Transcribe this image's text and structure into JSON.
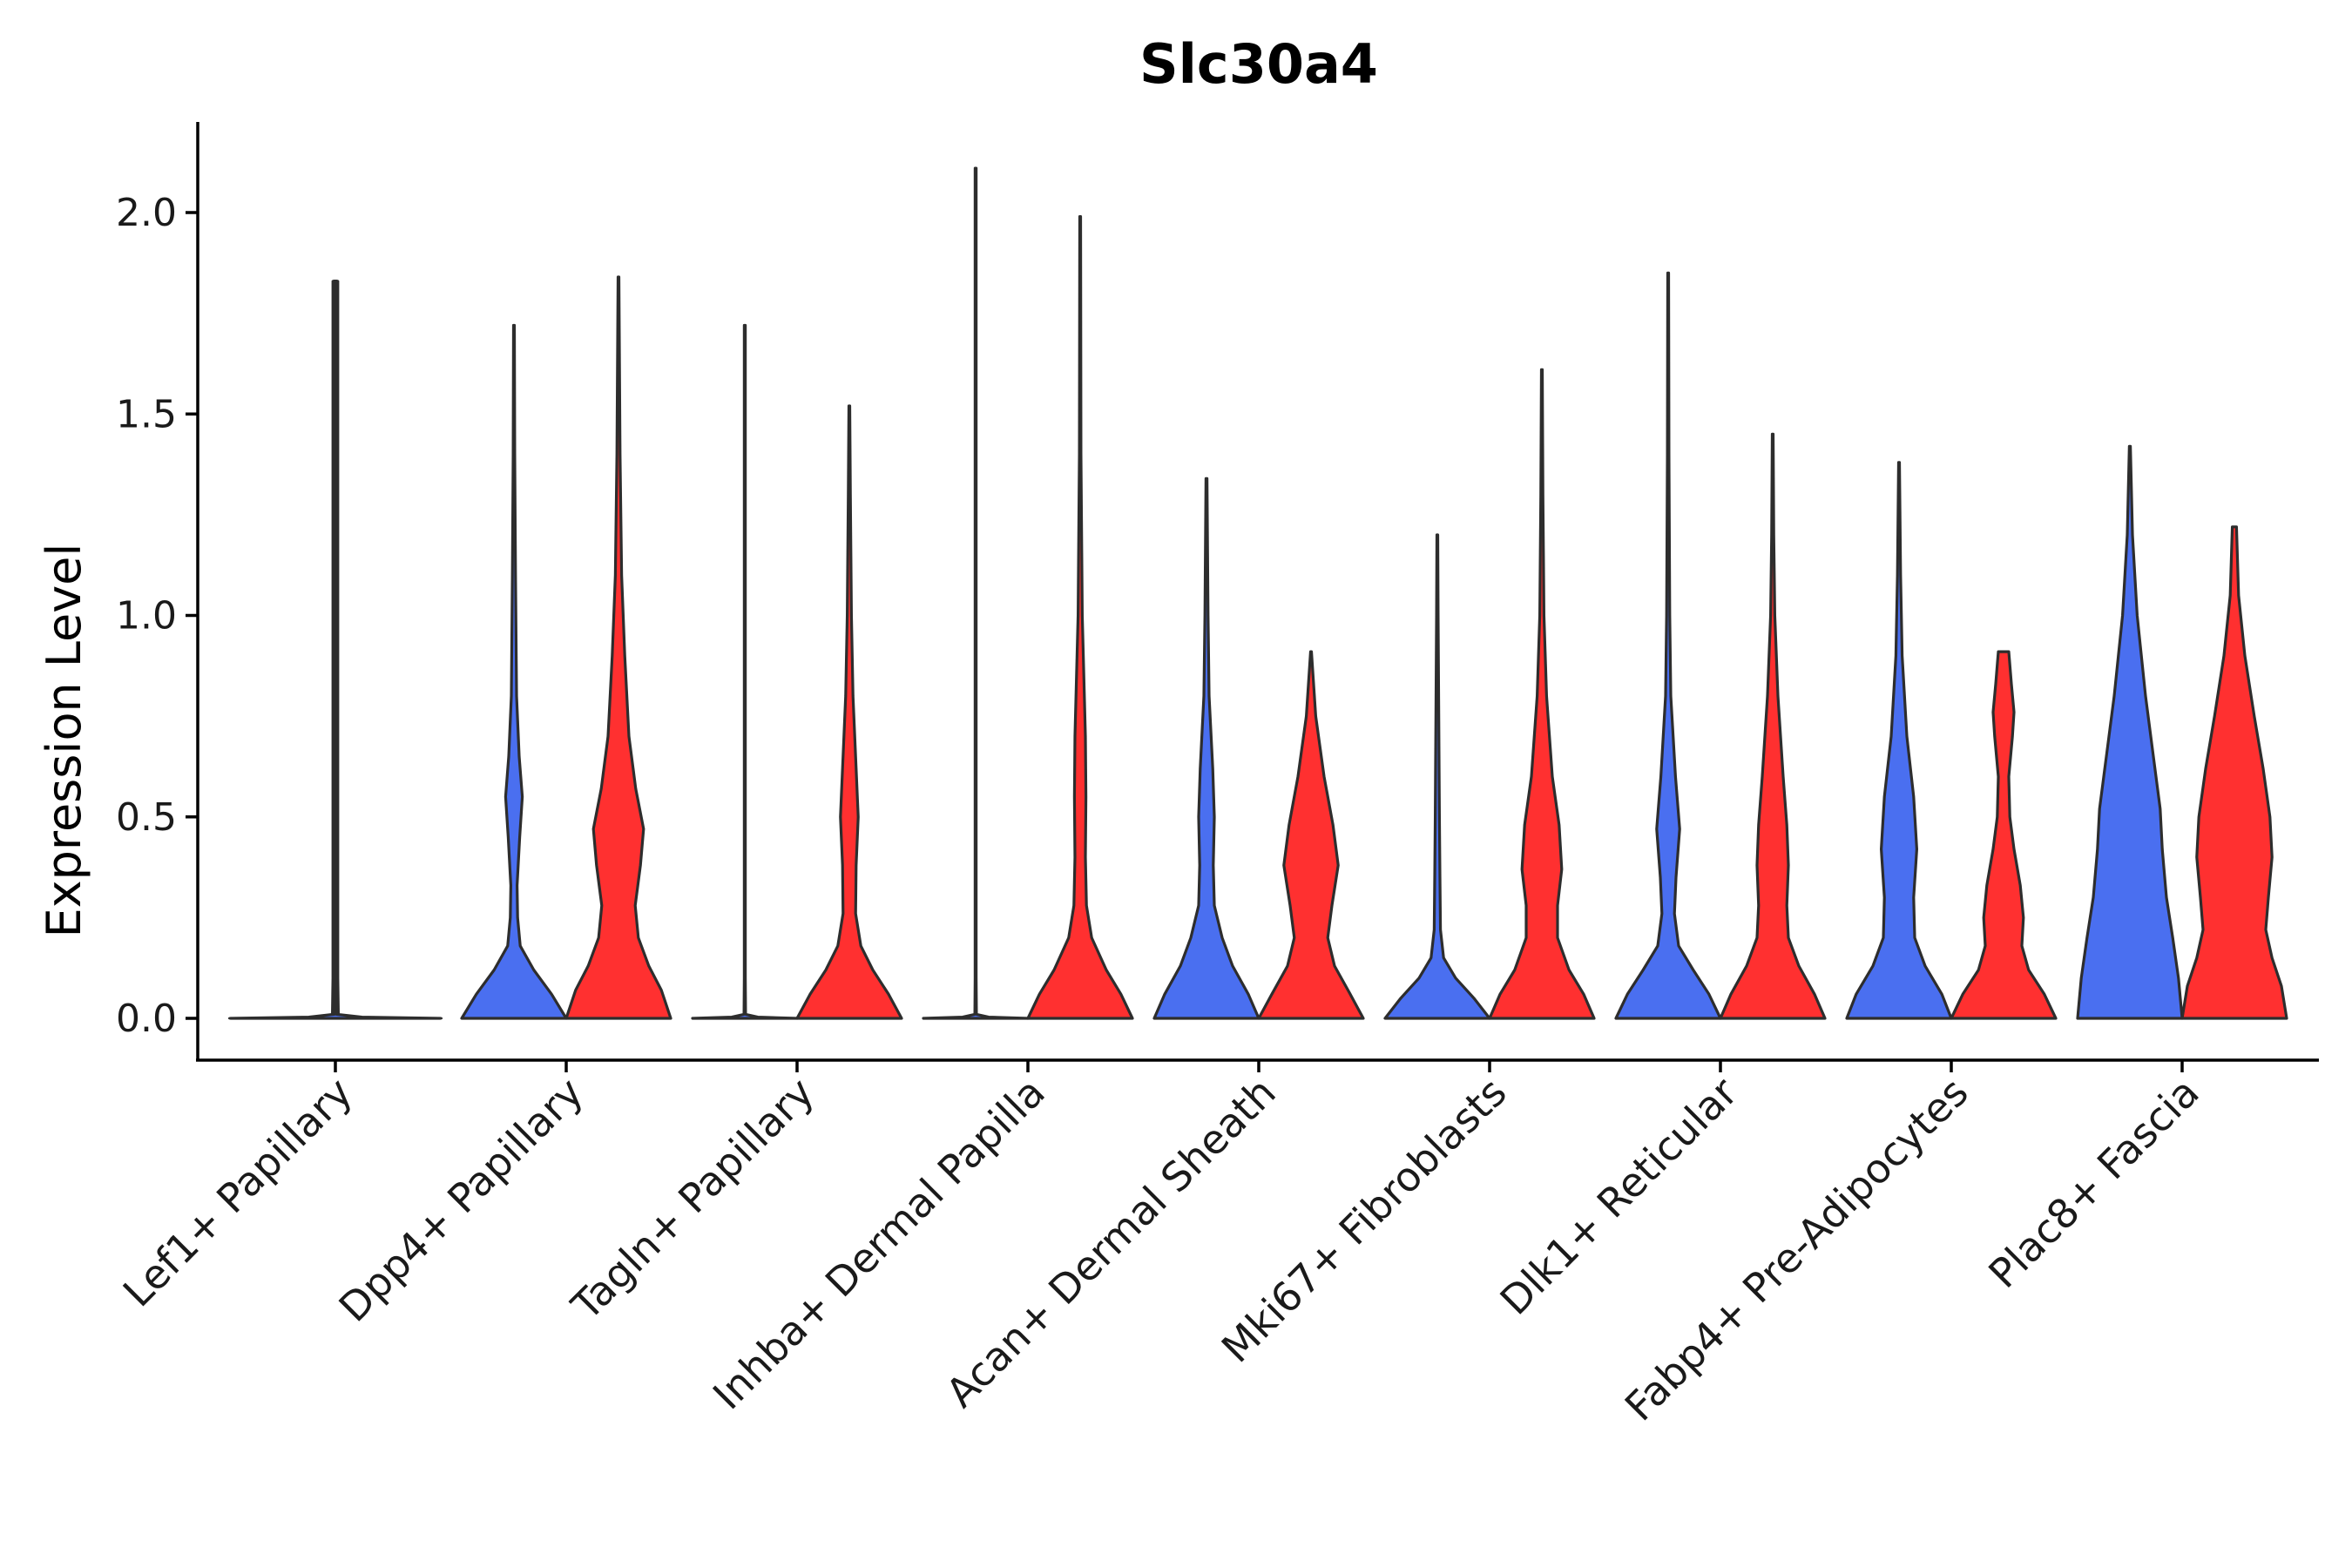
{
  "chart_data": {
    "type": "violin",
    "title": "Slc30a4",
    "xlabel": "",
    "ylabel": "Expression Level",
    "ylim": [
      -0.11,
      2.22
    ],
    "yticks": [
      "0.0",
      "0.5",
      "1.0",
      "1.5",
      "2.0"
    ],
    "categories": [
      "Lef1+ Papillary",
      "Dpp4+ Papillary",
      "Tagln+ Papillary",
      "Inhba+ Dermal Papilla",
      "Acan+ Dermal Sheath",
      "Mki67+ Fibroblasts",
      "Dlk1+ Reticular",
      "Fabp4+ Pre-Adipocytes",
      "Plac8+ Fascia"
    ],
    "colors": {
      "blue": "#4a6ff0",
      "red": "#ff3030",
      "outline": "#2d2d2d"
    },
    "series": [
      {
        "name": "blue",
        "color": "#4a6ff0",
        "violins": [
          {
            "max": 1.83,
            "density": [
              [
                0.0,
                1.0
              ],
              [
                0.003,
                0.25
              ],
              [
                0.01,
                0.015
              ],
              [
                0.1,
                0.01
              ],
              [
                1.83,
                0.01
              ]
            ]
          },
          {
            "max": 1.72,
            "density": [
              [
                0.0,
                1.0
              ],
              [
                0.06,
                0.72
              ],
              [
                0.12,
                0.38
              ],
              [
                0.18,
                0.12
              ],
              [
                0.25,
                0.07
              ],
              [
                0.33,
                0.06
              ],
              [
                0.45,
                0.11
              ],
              [
                0.55,
                0.16
              ],
              [
                0.65,
                0.1
              ],
              [
                0.8,
                0.05
              ],
              [
                1.1,
                0.03
              ],
              [
                1.4,
                0.015
              ],
              [
                1.72,
                0.008
              ]
            ]
          },
          {
            "max": 1.72,
            "density": [
              [
                0.0,
                1.0
              ],
              [
                0.003,
                0.25
              ],
              [
                0.01,
                0.015
              ],
              [
                0.1,
                0.01
              ],
              [
                1.72,
                0.01
              ]
            ]
          },
          {
            "max": 2.11,
            "density": [
              [
                0.0,
                1.0
              ],
              [
                0.003,
                0.25
              ],
              [
                0.01,
                0.015
              ],
              [
                0.1,
                0.01
              ],
              [
                2.11,
                0.01
              ]
            ]
          },
          {
            "max": 1.34,
            "density": [
              [
                0.0,
                1.0
              ],
              [
                0.06,
                0.8
              ],
              [
                0.13,
                0.5
              ],
              [
                0.2,
                0.3
              ],
              [
                0.28,
                0.15
              ],
              [
                0.38,
                0.13
              ],
              [
                0.5,
                0.15
              ],
              [
                0.62,
                0.12
              ],
              [
                0.8,
                0.05
              ],
              [
                1.0,
                0.03
              ],
              [
                1.34,
                0.01
              ]
            ]
          },
          {
            "max": 1.2,
            "density": [
              [
                0.0,
                1.0
              ],
              [
                0.05,
                0.7
              ],
              [
                0.1,
                0.35
              ],
              [
                0.15,
                0.12
              ],
              [
                0.22,
                0.06
              ],
              [
                0.35,
                0.05
              ],
              [
                0.5,
                0.04
              ],
              [
                0.7,
                0.03
              ],
              [
                1.0,
                0.015
              ],
              [
                1.2,
                0.008
              ]
            ]
          },
          {
            "max": 1.85,
            "density": [
              [
                0.0,
                1.0
              ],
              [
                0.06,
                0.78
              ],
              [
                0.12,
                0.48
              ],
              [
                0.18,
                0.2
              ],
              [
                0.26,
                0.12
              ],
              [
                0.35,
                0.15
              ],
              [
                0.47,
                0.22
              ],
              [
                0.6,
                0.14
              ],
              [
                0.8,
                0.05
              ],
              [
                1.0,
                0.03
              ],
              [
                1.4,
                0.015
              ],
              [
                1.85,
                0.008
              ]
            ]
          },
          {
            "max": 1.38,
            "density": [
              [
                0.0,
                1.0
              ],
              [
                0.06,
                0.82
              ],
              [
                0.13,
                0.5
              ],
              [
                0.2,
                0.3
              ],
              [
                0.3,
                0.28
              ],
              [
                0.42,
                0.34
              ],
              [
                0.55,
                0.28
              ],
              [
                0.7,
                0.15
              ],
              [
                0.9,
                0.06
              ],
              [
                1.1,
                0.03
              ],
              [
                1.38,
                0.008
              ]
            ]
          },
          {
            "max": 1.42,
            "density": [
              [
                0.0,
                1.0
              ],
              [
                0.1,
                0.93
              ],
              [
                0.2,
                0.82
              ],
              [
                0.3,
                0.7
              ],
              [
                0.42,
                0.62
              ],
              [
                0.52,
                0.58
              ],
              [
                0.65,
                0.45
              ],
              [
                0.8,
                0.3
              ],
              [
                1.0,
                0.14
              ],
              [
                1.2,
                0.05
              ],
              [
                1.42,
                0.01
              ]
            ]
          }
        ]
      },
      {
        "name": "red",
        "color": "#ff3030",
        "violins": [
          null,
          {
            "max": 1.84,
            "density": [
              [
                0.0,
                1.0
              ],
              [
                0.07,
                0.82
              ],
              [
                0.13,
                0.58
              ],
              [
                0.2,
                0.38
              ],
              [
                0.28,
                0.32
              ],
              [
                0.38,
                0.42
              ],
              [
                0.47,
                0.48
              ],
              [
                0.57,
                0.33
              ],
              [
                0.7,
                0.2
              ],
              [
                0.9,
                0.12
              ],
              [
                1.1,
                0.06
              ],
              [
                1.4,
                0.03
              ],
              [
                1.84,
                0.008
              ]
            ]
          },
          {
            "max": 1.52,
            "density": [
              [
                0.0,
                1.0
              ],
              [
                0.06,
                0.75
              ],
              [
                0.12,
                0.45
              ],
              [
                0.18,
                0.22
              ],
              [
                0.26,
                0.12
              ],
              [
                0.38,
                0.13
              ],
              [
                0.5,
                0.17
              ],
              [
                0.62,
                0.13
              ],
              [
                0.8,
                0.07
              ],
              [
                1.0,
                0.04
              ],
              [
                1.3,
                0.02
              ],
              [
                1.52,
                0.008
              ]
            ]
          },
          {
            "max": 1.99,
            "density": [
              [
                0.0,
                1.0
              ],
              [
                0.06,
                0.78
              ],
              [
                0.12,
                0.5
              ],
              [
                0.2,
                0.22
              ],
              [
                0.28,
                0.12
              ],
              [
                0.4,
                0.1
              ],
              [
                0.55,
                0.11
              ],
              [
                0.7,
                0.1
              ],
              [
                0.85,
                0.07
              ],
              [
                1.0,
                0.04
              ],
              [
                1.4,
                0.015
              ],
              [
                1.99,
                0.008
              ]
            ]
          },
          {
            "max": 0.91,
            "density": [
              [
                0.0,
                1.0
              ],
              [
                0.06,
                0.75
              ],
              [
                0.13,
                0.45
              ],
              [
                0.2,
                0.32
              ],
              [
                0.28,
                0.4
              ],
              [
                0.38,
                0.52
              ],
              [
                0.48,
                0.42
              ],
              [
                0.6,
                0.25
              ],
              [
                0.75,
                0.09
              ],
              [
                0.91,
                0.008
              ]
            ]
          },
          {
            "max": 1.61,
            "density": [
              [
                0.0,
                1.0
              ],
              [
                0.06,
                0.8
              ],
              [
                0.12,
                0.52
              ],
              [
                0.2,
                0.3
              ],
              [
                0.28,
                0.3
              ],
              [
                0.37,
                0.38
              ],
              [
                0.48,
                0.33
              ],
              [
                0.6,
                0.2
              ],
              [
                0.8,
                0.09
              ],
              [
                1.0,
                0.04
              ],
              [
                1.3,
                0.02
              ],
              [
                1.61,
                0.008
              ]
            ]
          },
          {
            "max": 1.45,
            "density": [
              [
                0.0,
                1.0
              ],
              [
                0.06,
                0.8
              ],
              [
                0.13,
                0.5
              ],
              [
                0.2,
                0.3
              ],
              [
                0.28,
                0.27
              ],
              [
                0.38,
                0.3
              ],
              [
                0.48,
                0.27
              ],
              [
                0.6,
                0.2
              ],
              [
                0.8,
                0.1
              ],
              [
                1.0,
                0.04
              ],
              [
                1.2,
                0.02
              ],
              [
                1.45,
                0.008
              ]
            ]
          },
          {
            "max": 0.91,
            "density": [
              [
                0.0,
                1.0
              ],
              [
                0.06,
                0.78
              ],
              [
                0.12,
                0.48
              ],
              [
                0.18,
                0.35
              ],
              [
                0.25,
                0.38
              ],
              [
                0.33,
                0.32
              ],
              [
                0.42,
                0.2
              ],
              [
                0.5,
                0.12
              ],
              [
                0.6,
                0.1
              ],
              [
                0.7,
                0.17
              ],
              [
                0.76,
                0.2
              ],
              [
                0.83,
                0.15
              ],
              [
                0.91,
                0.1
              ]
            ]
          },
          {
            "max": 1.22,
            "density": [
              [
                0.0,
                1.0
              ],
              [
                0.08,
                0.9
              ],
              [
                0.15,
                0.72
              ],
              [
                0.22,
                0.6
              ],
              [
                0.3,
                0.65
              ],
              [
                0.4,
                0.72
              ],
              [
                0.5,
                0.68
              ],
              [
                0.62,
                0.55
              ],
              [
                0.75,
                0.38
              ],
              [
                0.9,
                0.2
              ],
              [
                1.05,
                0.08
              ],
              [
                1.22,
                0.04
              ]
            ]
          }
        ]
      }
    ]
  }
}
